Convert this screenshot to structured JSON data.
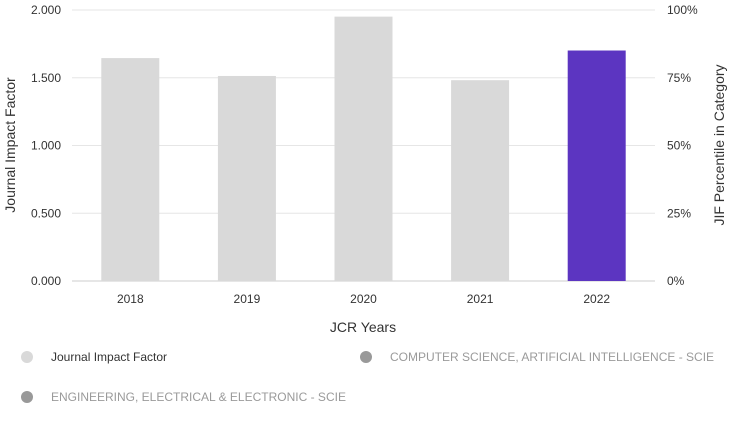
{
  "chart_data": {
    "type": "bar",
    "categories": [
      "2018",
      "2019",
      "2020",
      "2021",
      "2022"
    ],
    "series": [
      {
        "name": "Journal Impact Factor",
        "values": [
          1.645,
          1.513,
          1.951,
          1.482,
          1.701
        ],
        "colors": [
          "#d9d9d9",
          "#d9d9d9",
          "#d9d9d9",
          "#d9d9d9",
          "#5c35c1"
        ]
      }
    ],
    "xlabel": "JCR Years",
    "ylabel": "Journal Impact Factor",
    "ylabel_right": "JIF Percentile in Category",
    "ylim": [
      0,
      2
    ],
    "ylim_right": [
      0,
      100
    ],
    "y_ticks": [
      "0.000",
      "0.500",
      "1.000",
      "1.500",
      "2.000"
    ],
    "y_ticks_right": [
      "0%",
      "25%",
      "50%",
      "75%",
      "100%"
    ],
    "grid": true
  },
  "legend": {
    "items": [
      {
        "label": "Journal Impact Factor",
        "color": "#d9d9d9",
        "state": "active"
      },
      {
        "label": "COMPUTER SCIENCE, ARTIFICIAL INTELLIGENCE - SCIE",
        "color": "#999999",
        "state": "inactive"
      },
      {
        "label": "ENGINEERING, ELECTRICAL & ELECTRONIC - SCIE",
        "color": "#999999",
        "state": "inactive"
      }
    ]
  }
}
